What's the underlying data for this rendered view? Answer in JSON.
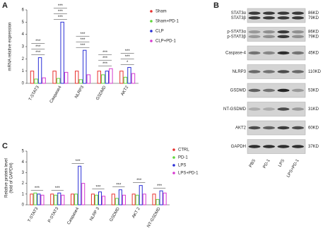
{
  "panel_labels": [
    "A",
    "B",
    "C"
  ],
  "chart_data": [
    {
      "type": "bar",
      "y_label": "mRNA relative expression",
      "categories": [
        "T-STAT3",
        "Caspase4",
        "NLRP3",
        "GSDMD",
        "AKT2"
      ],
      "series": [
        {
          "name": "Sham",
          "color": "#e8312f",
          "values": [
            1,
            1,
            1,
            1,
            1
          ]
        },
        {
          "name": "Sham+PD-1",
          "color": "#5fd63a",
          "values": [
            0.35,
            0.4,
            0.3,
            0.7,
            0.5
          ]
        },
        {
          "name": "CLP",
          "color": "#2a2fd6",
          "values": [
            2.1,
            5.0,
            2.7,
            1.0,
            1.3
          ]
        },
        {
          "name": "CLP+PD-1",
          "color": "#d63ad0",
          "values": [
            0.45,
            0.9,
            0.7,
            1.2,
            0.8
          ]
        }
      ],
      "significance": [
        [
          "***",
          "***",
          "***"
        ],
        [
          "***",
          "***",
          "***"
        ],
        [
          "***",
          "***",
          "***"
        ],
        [
          "***",
          "***",
          "***"
        ],
        [
          "*",
          "***",
          "***"
        ]
      ],
      "ylim": [
        0,
        6
      ],
      "yticks": [
        0,
        1,
        2,
        3,
        4,
        5,
        6
      ]
    },
    {
      "type": "bar",
      "y_label": [
        "Relative protein level",
        "(fold of GAPDH)"
      ],
      "categories": [
        "T-STAT3",
        "P-STAT3",
        "Caspase4",
        "NLRP 3",
        "GSDMD",
        "AKT 2",
        "NT-GSDMD"
      ],
      "series": [
        {
          "name": "CTRL",
          "color": "#e8312f",
          "values": [
            1,
            1,
            1,
            1,
            1,
            1,
            1
          ]
        },
        {
          "name": "PD-1",
          "color": "#5fd63a",
          "values": [
            1.1,
            0.9,
            1.0,
            0.9,
            0.6,
            0.9,
            0.5
          ]
        },
        {
          "name": "LPS",
          "color": "#2a2fd6",
          "values": [
            1.0,
            1.1,
            3.6,
            1.2,
            1.4,
            1.8,
            1.3
          ]
        },
        {
          "name": "LPS+PD-1",
          "color": "#d63ad0",
          "values": [
            0.9,
            0.9,
            2.0,
            0.8,
            0.9,
            1.0,
            1.1
          ]
        }
      ],
      "significance": [
        [
          "***"
        ],
        [
          "***"
        ],
        [
          "***"
        ],
        [
          "***"
        ],
        [
          "***"
        ],
        [
          "***"
        ],
        [
          "***"
        ]
      ],
      "ylim": [
        0,
        5
      ],
      "yticks": [
        0,
        1,
        2,
        3,
        4,
        5
      ]
    }
  ],
  "blot": {
    "rows": [
      {
        "labels": [
          "STAT3α",
          "STAT3β"
        ],
        "sizes": [
          "86KD",
          "79KD"
        ]
      },
      {
        "labels": [
          "p-STAT3α",
          "p-STAT3β"
        ],
        "sizes": [
          "86KD",
          "79KD"
        ]
      },
      {
        "labels": [
          "Caspase-4"
        ],
        "sizes": [
          "45KD"
        ]
      },
      {
        "labels": [
          "NLRP3"
        ],
        "sizes": [
          "110KD"
        ]
      },
      {
        "labels": [
          "GSDMD"
        ],
        "sizes": [
          "53KD"
        ]
      },
      {
        "labels": [
          "NT-GSDMD"
        ],
        "sizes": [
          "31KD"
        ]
      },
      {
        "labels": [
          "AKT2"
        ],
        "sizes": [
          "60KD"
        ]
      },
      {
        "labels": [
          "GAPDH"
        ],
        "sizes": [
          "37KD"
        ]
      }
    ],
    "lanes": [
      "PBS",
      "PD-1",
      "LPS",
      "LPS+PD-1"
    ]
  }
}
